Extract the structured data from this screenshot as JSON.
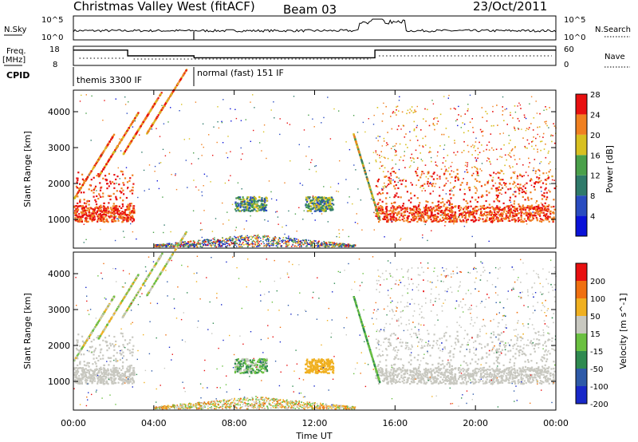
{
  "header": {
    "title": "Christmas Valley West (fitACF)",
    "beam": "Beam 03",
    "date": "23/Oct/2011"
  },
  "params": {
    "nsky_label": "N.Sky",
    "nsky_ticks": [
      "10^5",
      "10^0"
    ],
    "nsearch_label": "N.Search",
    "nsearch_ticks": [
      "10^5",
      "10^0"
    ],
    "freq_label": "Freq.",
    "freq_unit": "[MHz]",
    "freq_ticks": [
      "18",
      "8"
    ],
    "nave_label": "Nave",
    "nave_ticks": [
      "60",
      "0"
    ],
    "cpid_label": "CPID",
    "cpid_segments": [
      {
        "label": "themis 3300 IF",
        "start_hour": 0,
        "end_hour": 6
      },
      {
        "label": "normal (fast) 151 IF",
        "start_hour": 6,
        "end_hour": 24
      }
    ],
    "freq_series": [
      [
        0,
        16
      ],
      [
        2.7,
        16
      ],
      [
        2.7,
        13
      ],
      [
        6,
        13
      ],
      [
        6,
        12
      ],
      [
        15,
        12
      ],
      [
        15,
        16
      ],
      [
        24,
        16
      ]
    ]
  },
  "chart_data": [
    {
      "type": "heatmap",
      "name": "power",
      "ylabel": "Slant Range [km]",
      "yticks": [
        "1000",
        "2000",
        "3000",
        "4000"
      ],
      "ylim": [
        200,
        4600
      ],
      "xlim": [
        0,
        24
      ],
      "colorbar_label": "Power [dB]",
      "colorbar_ticks": [
        "4",
        "8",
        "12",
        "16",
        "20",
        "24",
        "28"
      ],
      "colorbar_colors": [
        "#0a12d8",
        "#2a4cc0",
        "#2f7a6a",
        "#4aa04a",
        "#d8c020",
        "#f08020",
        "#e81010"
      ]
    },
    {
      "type": "heatmap",
      "name": "velocity",
      "ylabel": "Slant Range [km]",
      "yticks": [
        "1000",
        "2000",
        "3000",
        "4000"
      ],
      "ylim": [
        200,
        4600
      ],
      "xlim": [
        0,
        24
      ],
      "colorbar_label": "Velocity [m s^-1]",
      "colorbar_ticks": [
        "200",
        "100",
        "50",
        "15",
        "-15",
        "-50",
        "-100",
        "-200"
      ],
      "colorbar_colors": [
        "#1828c8",
        "#2e5aa8",
        "#2f8a50",
        "#6ac040",
        "#c8c8c0",
        "#f0b020",
        "#f07010",
        "#e81010"
      ]
    }
  ],
  "xaxis": {
    "label": "Time UT",
    "ticks": [
      "00:00",
      "04:00",
      "08:00",
      "12:00",
      "16:00",
      "20:00",
      "00:00"
    ]
  }
}
